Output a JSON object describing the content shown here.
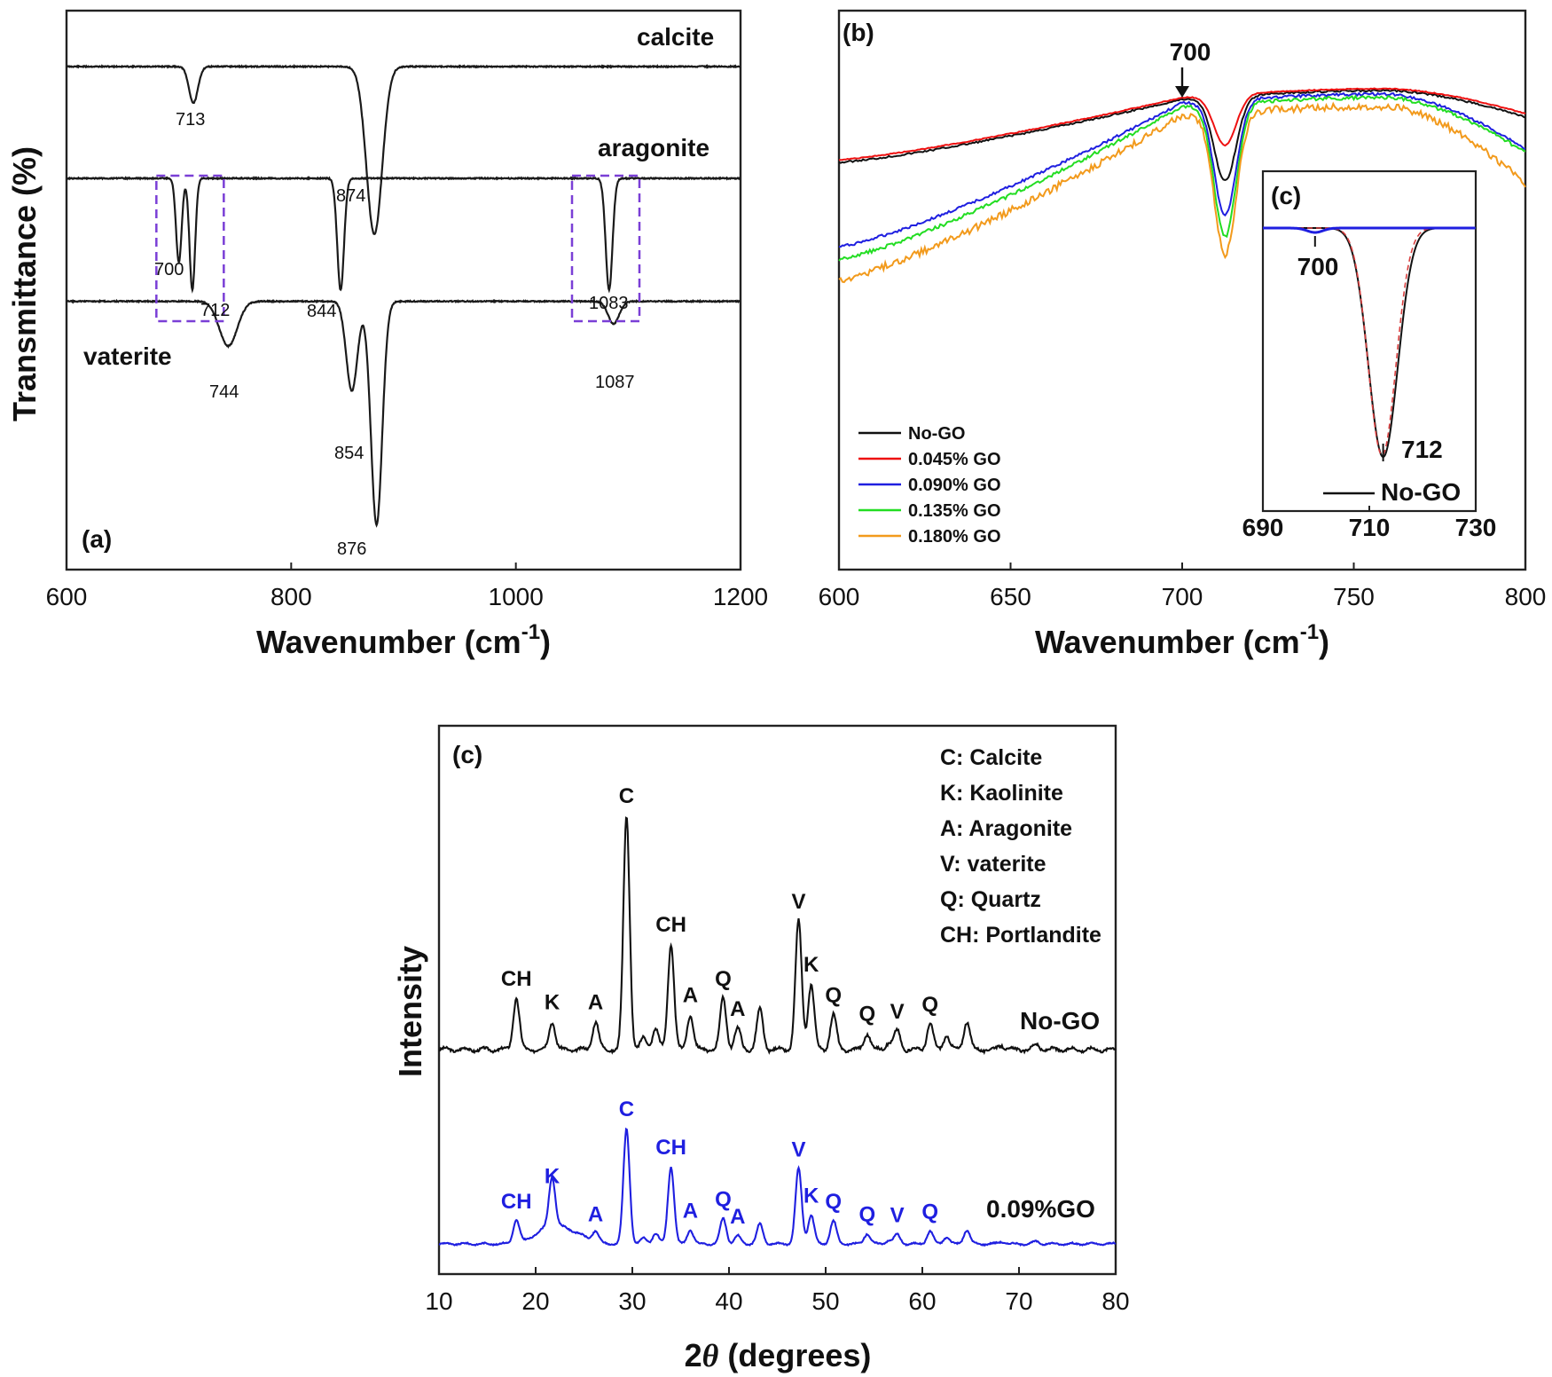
{
  "chart_data": [
    {
      "panel": "(a)",
      "type": "line",
      "xlabel": "Wavenumber (cm-1)",
      "xlabel_main": "Wavenumber (cm",
      "xlabel_sup": "-1",
      "xlabel_close": ")",
      "ylabel": "Transmittance (%)",
      "xlim": [
        600,
        1200
      ],
      "xticks": [
        "600",
        "800",
        "1000",
        "1200"
      ],
      "series": [
        {
          "name": "calcite",
          "baseline": 0.1,
          "peaks": [
            {
              "x": 713,
              "depth": 0.065,
              "w": 4
            },
            {
              "x": 874,
              "depth": 0.3,
              "w": 7
            }
          ]
        },
        {
          "name": "aragonite",
          "baseline": 0.3,
          "peaks": [
            {
              "x": 700,
              "depth": 0.15,
              "w": 2.5
            },
            {
              "x": 712,
              "depth": 0.2,
              "w": 2.5
            },
            {
              "x": 844,
              "depth": 0.2,
              "w": 3
            },
            {
              "x": 1083,
              "depth": 0.2,
              "w": 3
            }
          ]
        },
        {
          "name": "vaterite",
          "baseline": 0.52,
          "peaks": [
            {
              "x": 744,
              "depth": 0.08,
              "w": 8
            },
            {
              "x": 854,
              "depth": 0.16,
              "w": 5
            },
            {
              "x": 876,
              "depth": 0.4,
              "w": 5
            },
            {
              "x": 1087,
              "depth": 0.04,
              "w": 5
            }
          ]
        }
      ],
      "peak_labels": [
        "713",
        "874",
        "700",
        "712",
        "844",
        "1083",
        "744",
        "854",
        "876",
        "1087"
      ],
      "highlight_boxes": [
        [
          680,
          740
        ],
        [
          1050,
          1110
        ]
      ]
    },
    {
      "panel": "(b)",
      "type": "line",
      "xlabel": "Wavenumber (cm-1)",
      "xlim": [
        600,
        800
      ],
      "xticks": [
        "600",
        "650",
        "700",
        "750",
        "800"
      ],
      "annotation": "700",
      "annotation_x": 700,
      "series": [
        {
          "name": "No-GO",
          "color": "#111111"
        },
        {
          "name": "0.045% GO",
          "color": "#ee1111"
        },
        {
          "name": "0.090% GO",
          "color": "#1f1fe0"
        },
        {
          "name": "0.135% GO",
          "color": "#22dd22"
        },
        {
          "name": "0.180% GO",
          "color": "#f29a1c"
        }
      ]
    },
    {
      "panel": "(c)",
      "type": "line",
      "inset": true,
      "xlim": [
        690,
        730
      ],
      "xticks": [
        "690",
        "710",
        "730"
      ],
      "peak_labels": [
        "700",
        "712"
      ],
      "legend": "No-GO"
    },
    {
      "panel": "(c)",
      "type": "line",
      "xlabel": "2θ (degrees)",
      "xlabel_theta": "θ",
      "xlabel_pre": "2",
      "xlabel_post": " (degrees)",
      "ylabel": "Intensity",
      "xlim": [
        10,
        80
      ],
      "xticks": [
        "10",
        "20",
        "30",
        "40",
        "50",
        "60",
        "70",
        "80"
      ],
      "series": [
        {
          "name": "No-GO",
          "color": "#111111"
        },
        {
          "name": "0.09%GO",
          "color": "#1f1fe0"
        }
      ],
      "phase_key": [
        "C: Calcite",
        "K: Kaolinite",
        "A: Aragonite",
        "V: vaterite",
        "Q: Quartz",
        "CH: Portlandite"
      ],
      "peaks_nogo": [
        {
          "x": 18.0,
          "h": 0.22,
          "label": "CH"
        },
        {
          "x": 21.7,
          "h": 0.12,
          "label": "K"
        },
        {
          "x": 26.2,
          "h": 0.12,
          "label": "A"
        },
        {
          "x": 29.4,
          "h": 1.0,
          "label": "C"
        },
        {
          "x": 34.0,
          "h": 0.45,
          "label": "CH"
        },
        {
          "x": 36.0,
          "h": 0.15,
          "label": "A"
        },
        {
          "x": 39.4,
          "h": 0.22,
          "label": "Q"
        },
        {
          "x": 40.9,
          "h": 0.09,
          "label": "A"
        },
        {
          "x": 47.2,
          "h": 0.55,
          "label": "V"
        },
        {
          "x": 48.5,
          "h": 0.28,
          "label": "K"
        },
        {
          "x": 50.8,
          "h": 0.15,
          "label": "Q"
        },
        {
          "x": 54.3,
          "h": 0.07,
          "label": "Q"
        },
        {
          "x": 57.4,
          "h": 0.08,
          "label": "V"
        },
        {
          "x": 60.8,
          "h": 0.11,
          "label": "Q"
        }
      ],
      "peaks_go": [
        {
          "x": 18.0,
          "h": 0.2,
          "label": "CH"
        },
        {
          "x": 21.7,
          "h": 0.42,
          "label": "K"
        },
        {
          "x": 26.2,
          "h": 0.09,
          "label": "A"
        },
        {
          "x": 29.4,
          "h": 1.0,
          "label": "C"
        },
        {
          "x": 34.0,
          "h": 0.67,
          "label": "CH"
        },
        {
          "x": 36.0,
          "h": 0.12,
          "label": "A"
        },
        {
          "x": 39.4,
          "h": 0.22,
          "label": "Q"
        },
        {
          "x": 40.9,
          "h": 0.07,
          "label": "A"
        },
        {
          "x": 47.2,
          "h": 0.65,
          "label": "V"
        },
        {
          "x": 48.5,
          "h": 0.25,
          "label": "K"
        },
        {
          "x": 50.8,
          "h": 0.2,
          "label": "Q"
        },
        {
          "x": 54.3,
          "h": 0.09,
          "label": "Q"
        },
        {
          "x": 57.4,
          "h": 0.08,
          "label": "V"
        },
        {
          "x": 60.8,
          "h": 0.11,
          "label": "Q"
        }
      ]
    }
  ]
}
